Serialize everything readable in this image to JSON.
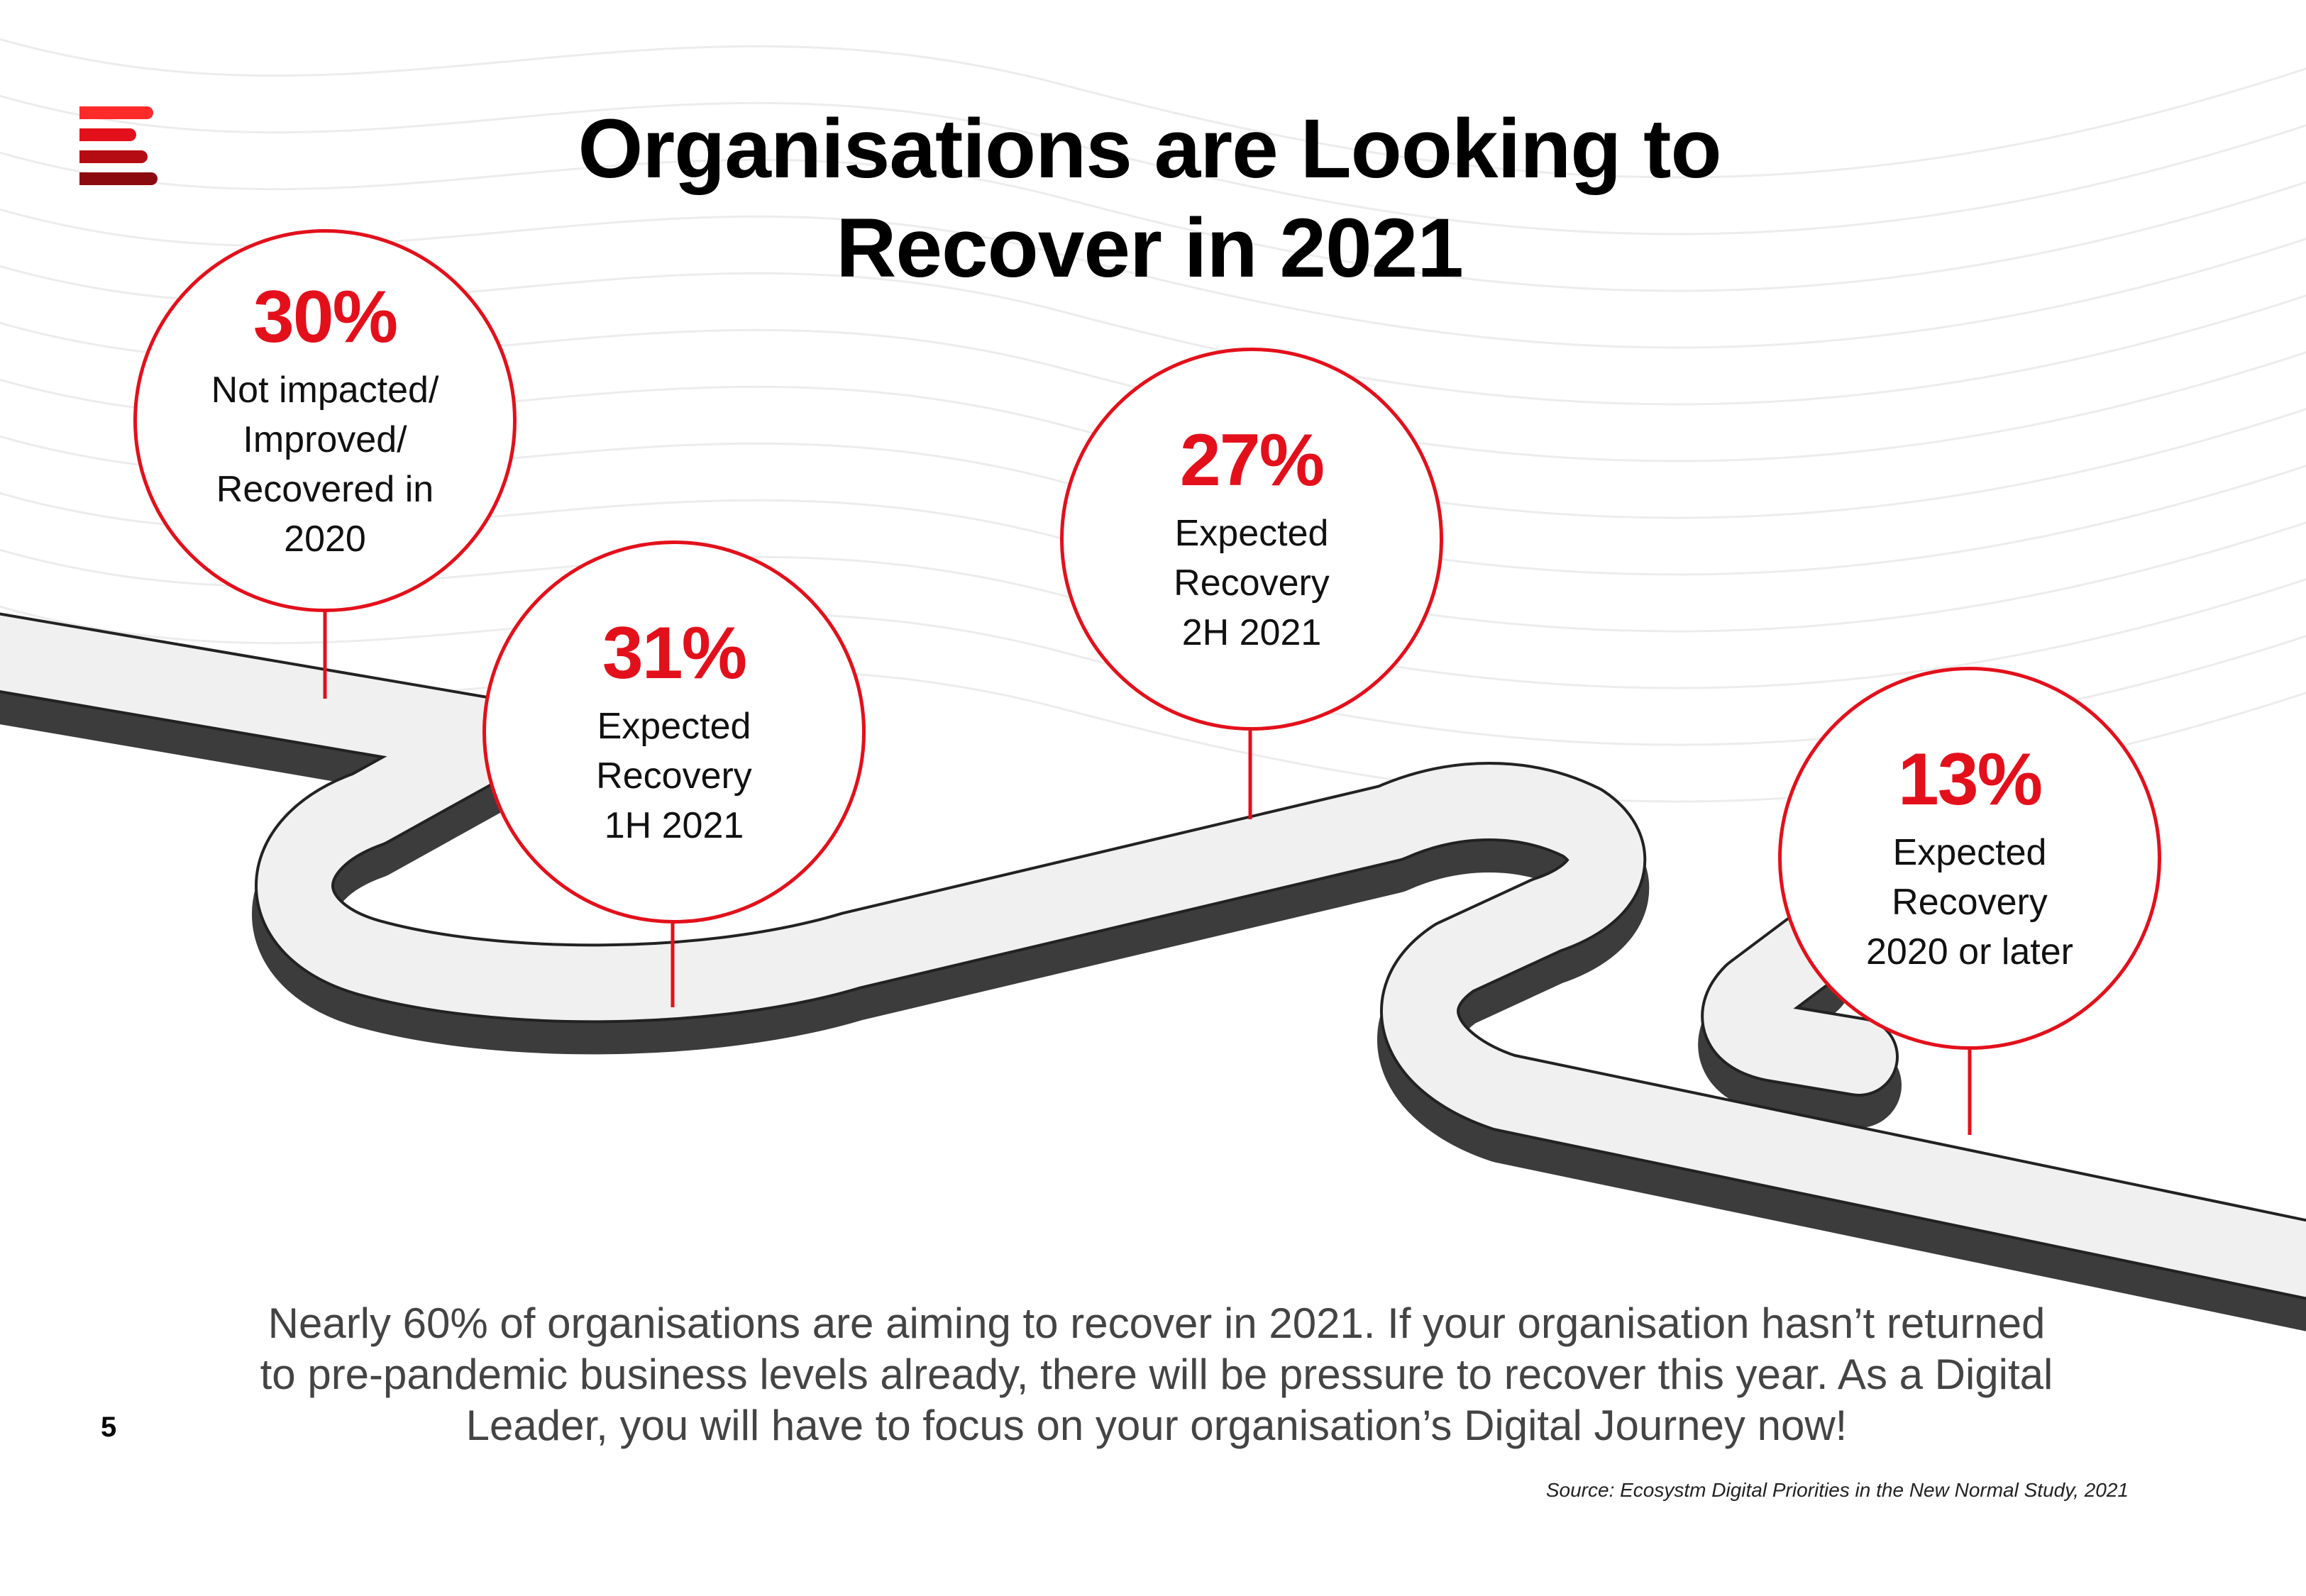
{
  "title_line1": "Organisations are Looking to",
  "title_line2": "Recover in 2021",
  "brand_colors": {
    "accent": "#e3101b",
    "dark_red": "#8b0a0f",
    "road_dark": "#3c3c3c",
    "road_light": "#f0f0f0"
  },
  "logo_icon": "stacked-bars-logo",
  "milestones": [
    {
      "percent": "30%",
      "line1": "Not impacted/",
      "line2": "Improved/",
      "line3": "Recovered in",
      "line4": "2020"
    },
    {
      "percent": "31%",
      "line1": "Expected",
      "line2": "Recovery",
      "line3": "1H 2021",
      "line4": ""
    },
    {
      "percent": "27%",
      "line1": "Expected",
      "line2": "Recovery",
      "line3": "2H 2021",
      "line4": ""
    },
    {
      "percent": "13%",
      "line1": "Expected",
      "line2": "Recovery",
      "line3": "2020 or later",
      "line4": ""
    }
  ],
  "body_line1": "Nearly 60% of organisations are aiming to recover in 2021. If your organisation hasn’t returned",
  "body_line2": "to pre-pandemic business levels already, there will be pressure to recover this year. As a Digital",
  "body_line3": "Leader, you will have to focus on your organisation’s Digital Journey now!",
  "page_number": "5",
  "source": "Source: Ecosystm Digital Priorities in the New Normal Study, 2021"
}
